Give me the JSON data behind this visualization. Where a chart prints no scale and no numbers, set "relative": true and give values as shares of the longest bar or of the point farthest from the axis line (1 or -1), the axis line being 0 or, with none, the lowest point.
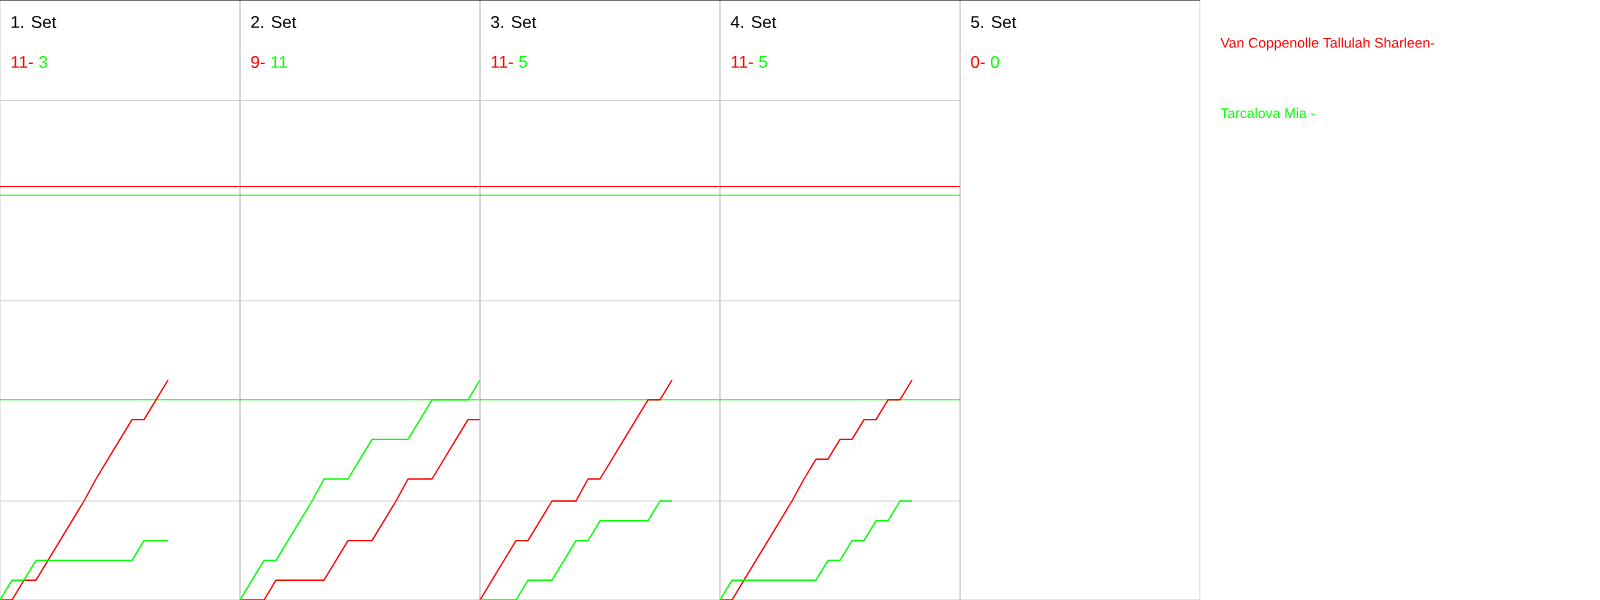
{
  "chart_data": [
    {
      "type": "line",
      "relative": true,
      "title": "1. Set",
      "annotations": [
        "11-",
        "3"
      ],
      "categories": [
        null,
        null,
        null,
        null,
        null,
        null,
        null,
        null,
        null,
        null,
        null,
        null,
        null,
        null,
        null,
        null,
        null,
        null,
        null,
        null,
        null
      ],
      "ref_lines": [
        {
          "axis": "y",
          "value": 0.45,
          "color": "#d3d3d3"
        },
        {
          "axis": "y",
          "value": 1.36,
          "color": "#d3d3d3"
        },
        {
          "axis": "y",
          "value": 2.27,
          "color": "#d3d3d3"
        },
        {
          "axis": "y",
          "value": 1.88,
          "color": "#ff0000"
        },
        {
          "axis": "y",
          "value": 1.84,
          "color": "#00ff00"
        },
        {
          "axis": "y",
          "value": 0.91,
          "color": "#00ff00"
        }
      ],
      "series": [
        {
          "name": "Van Coppenolle Tallulah Sharleen-",
          "color": "#ff0000",
          "values": [
            0,
            0,
            0.09,
            0.09,
            0.18,
            0.27,
            0.36,
            0.45,
            0.55,
            0.64,
            0.73,
            0.82,
            0.82,
            0.91,
            1,
            null,
            null,
            null,
            null,
            null,
            null
          ]
        },
        {
          "name": "Tarcalova  Mia -",
          "color": "#00ff00",
          "values": [
            0,
            0.09,
            0.09,
            0.18,
            0.18,
            0.18,
            0.18,
            0.18,
            0.18,
            0.18,
            0.18,
            0.18,
            0.27,
            0.27,
            0.27,
            null,
            null,
            null,
            null,
            null,
            null
          ]
        }
      ]
    },
    {
      "type": "line",
      "relative": true,
      "title": "2. Set",
      "annotations": [
        "9-",
        "11"
      ],
      "categories": [
        null,
        null,
        null,
        null,
        null,
        null,
        null,
        null,
        null,
        null,
        null,
        null,
        null,
        null,
        null,
        null,
        null,
        null,
        null,
        null,
        null
      ],
      "ref_lines": [
        {
          "axis": "y",
          "value": 0.45,
          "color": "#d3d3d3"
        },
        {
          "axis": "y",
          "value": 1.36,
          "color": "#d3d3d3"
        },
        {
          "axis": "y",
          "value": 2.27,
          "color": "#d3d3d3"
        },
        {
          "axis": "y",
          "value": 1.88,
          "color": "#ff0000"
        },
        {
          "axis": "y",
          "value": 1.84,
          "color": "#00ff00"
        },
        {
          "axis": "y",
          "value": 0.91,
          "color": "#00ff00"
        }
      ],
      "series": [
        {
          "color": "#ff0000",
          "values": [
            0,
            0,
            0,
            0.09,
            0.09,
            0.09,
            0.09,
            0.09,
            0.18,
            0.27,
            0.27,
            0.27,
            0.36,
            0.45,
            0.55,
            0.55,
            0.55,
            0.64,
            0.73,
            0.82,
            0.82
          ]
        },
        {
          "color": "#00ff00",
          "values": [
            0,
            0.09,
            0.18,
            0.18,
            0.27,
            0.36,
            0.45,
            0.55,
            0.55,
            0.55,
            0.64,
            0.73,
            0.73,
            0.73,
            0.73,
            0.82,
            0.91,
            0.91,
            0.91,
            0.91,
            1
          ]
        }
      ]
    },
    {
      "type": "line",
      "relative": true,
      "title": "3. Set",
      "annotations": [
        "11-",
        "5"
      ],
      "categories": [
        null,
        null,
        null,
        null,
        null,
        null,
        null,
        null,
        null,
        null,
        null,
        null,
        null,
        null,
        null,
        null,
        null,
        null,
        null,
        null,
        null
      ],
      "ref_lines": [
        {
          "axis": "y",
          "value": 0.45,
          "color": "#d3d3d3"
        },
        {
          "axis": "y",
          "value": 1.36,
          "color": "#d3d3d3"
        },
        {
          "axis": "y",
          "value": 2.27,
          "color": "#d3d3d3"
        },
        {
          "axis": "y",
          "value": 1.88,
          "color": "#ff0000"
        },
        {
          "axis": "y",
          "value": 1.84,
          "color": "#00ff00"
        },
        {
          "axis": "y",
          "value": 0.91,
          "color": "#00ff00"
        }
      ],
      "series": [
        {
          "color": "#ff0000",
          "values": [
            0,
            0.09,
            0.18,
            0.27,
            0.27,
            0.36,
            0.45,
            0.45,
            0.45,
            0.55,
            0.55,
            0.64,
            0.73,
            0.82,
            0.91,
            0.91,
            1,
            null,
            null,
            null,
            null
          ]
        },
        {
          "color": "#00ff00",
          "values": [
            0,
            0,
            0,
            0,
            0.09,
            0.09,
            0.09,
            0.18,
            0.27,
            0.27,
            0.36,
            0.36,
            0.36,
            0.36,
            0.36,
            0.45,
            0.45,
            null,
            null,
            null,
            null
          ]
        }
      ]
    },
    {
      "type": "line",
      "relative": true,
      "title": "4. Set",
      "annotations": [
        "11-",
        "5"
      ],
      "categories": [
        null,
        null,
        null,
        null,
        null,
        null,
        null,
        null,
        null,
        null,
        null,
        null,
        null,
        null,
        null,
        null,
        null,
        null,
        null,
        null,
        null
      ],
      "ref_lines": [
        {
          "axis": "y",
          "value": 0.45,
          "color": "#d3d3d3"
        },
        {
          "axis": "y",
          "value": 1.36,
          "color": "#d3d3d3"
        },
        {
          "axis": "y",
          "value": 2.27,
          "color": "#d3d3d3"
        },
        {
          "axis": "y",
          "value": 1.88,
          "color": "#ff0000"
        },
        {
          "axis": "y",
          "value": 1.84,
          "color": "#00ff00"
        },
        {
          "axis": "y",
          "value": 0.91,
          "color": "#00ff00"
        }
      ],
      "series": [
        {
          "color": "#ff0000",
          "values": [
            0,
            0,
            0.09,
            0.18,
            0.27,
            0.36,
            0.45,
            0.55,
            0.64,
            0.64,
            0.73,
            0.73,
            0.82,
            0.82,
            0.91,
            0.91,
            1,
            null,
            null,
            null,
            null
          ]
        },
        {
          "color": "#00ff00",
          "values": [
            0,
            0.09,
            0.09,
            0.09,
            0.09,
            0.09,
            0.09,
            0.09,
            0.09,
            0.18,
            0.18,
            0.27,
            0.27,
            0.36,
            0.36,
            0.45,
            0.45,
            null,
            null,
            null,
            null
          ]
        }
      ]
    },
    {
      "type": "other",
      "title": "5. Set",
      "annotations": [
        "0-",
        "0"
      ]
    }
  ]
}
